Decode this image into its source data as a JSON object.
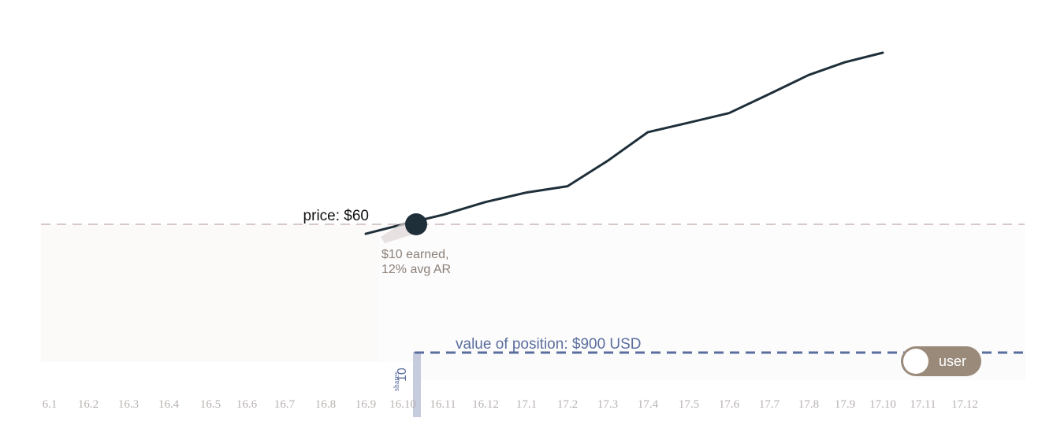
{
  "chart_data": {
    "type": "line",
    "x_ticks": [
      "6.1",
      "16.2",
      "16.3",
      "16.4",
      "16.5",
      "16.6",
      "16.7",
      "16.8",
      "16.9",
      "16.10",
      "16.11",
      "16.12",
      "17.1",
      "17.2",
      "17.3",
      "17.4",
      "17.5",
      "17.6",
      "17.7",
      "17.8",
      "17.9",
      "17.10",
      "17.11",
      "17.12"
    ],
    "series": [
      {
        "x": [
          "16.9",
          "16.10",
          "16.11",
          "16.12",
          "17.1",
          "17.2",
          "17.3",
          "17.4",
          "17.5",
          "17.6",
          "17.7",
          "17.8",
          "17.9",
          "17.10"
        ],
        "values": [
          57,
          60,
          63,
          67,
          70,
          72,
          80,
          89,
          92,
          95,
          101,
          107,
          111,
          114
        ]
      }
    ],
    "price_line": 60,
    "marker_x": "16.10",
    "colors": {
      "price_line": "#1f2f3a",
      "marker": "#1f2f3a",
      "reference_dash": "#d9c8c8",
      "position_dash": "#5a6e9e",
      "axis_labels": "#b7b2b0",
      "annotation": "#8a7f77",
      "toggle": "#9a8a7a"
    }
  },
  "annotations": {
    "price_label": "price: $60",
    "earned_line1": "$10 earned,",
    "earned_line2": "12% avg AR",
    "position_label": "value of position:  $900 USD",
    "shares_count": "10",
    "shares_unit": "shares"
  },
  "toggle": {
    "label": "user",
    "icon": "toggle-knob"
  }
}
